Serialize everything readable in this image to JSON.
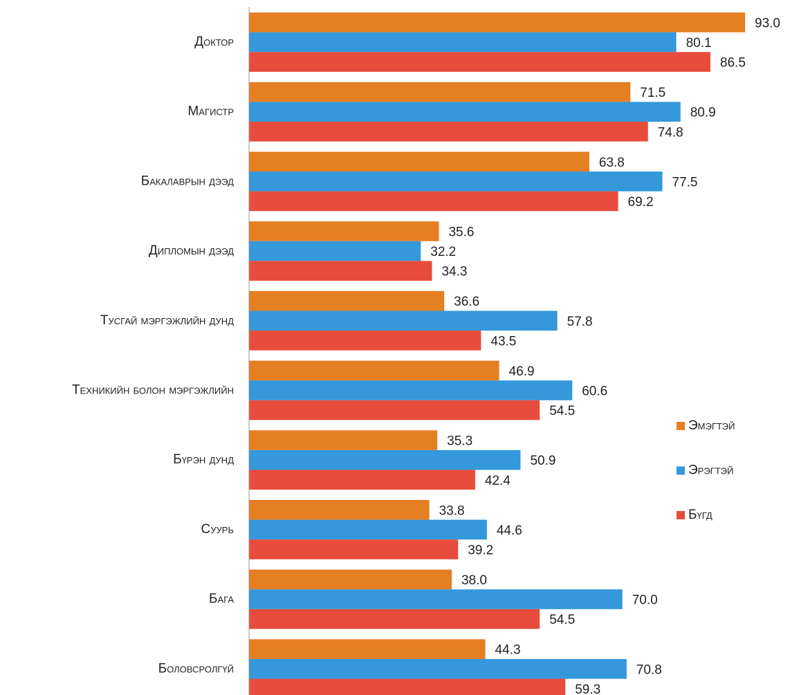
{
  "chart_data": {
    "type": "hbar",
    "categories": [
      "Доктор",
      "Магистр",
      "Бакалаврын дээд",
      "Дипломын дээд",
      "Тусгай мэргэжлийн дунд",
      "Техникийн болон мэргэжлийн",
      "Бүрэн дунд",
      "Суурь",
      "Бага",
      "Боловсролгүй"
    ],
    "series": [
      {
        "name": "Эмэгтэй",
        "color": "#e67e22",
        "values": [
          93.0,
          71.5,
          63.8,
          35.6,
          36.6,
          46.9,
          35.3,
          33.8,
          38.0,
          44.3
        ],
        "value_labels": [
          "93.0",
          "71.5",
          "63.8",
          "35.6",
          "36.6",
          "46.9",
          "35.3",
          "33.8",
          "38.0",
          "44.3"
        ]
      },
      {
        "name": "Эрэгтэй",
        "color": "#3498db",
        "values": [
          80.1,
          80.9,
          77.5,
          32.2,
          57.8,
          60.6,
          50.9,
          44.6,
          70.0,
          70.8
        ],
        "value_labels": [
          "80.1",
          "80.9",
          "77.5",
          "32.2",
          "57.8",
          "60.6",
          "50.9",
          "44.6",
          "70.0",
          "70.8"
        ]
      },
      {
        "name": "Бүгд",
        "color": "#e74c3c",
        "values": [
          86.5,
          74.8,
          69.2,
          34.3,
          43.5,
          54.5,
          42.4,
          39.2,
          54.5,
          59.3
        ],
        "value_labels": [
          "86.5",
          "74.8",
          "69.2",
          "34.3",
          "43.5",
          "54.5",
          "42.4",
          "39.2",
          "54.5",
          "59.3"
        ]
      }
    ],
    "xlim": [
      0,
      100
    ],
    "legend": "right"
  }
}
